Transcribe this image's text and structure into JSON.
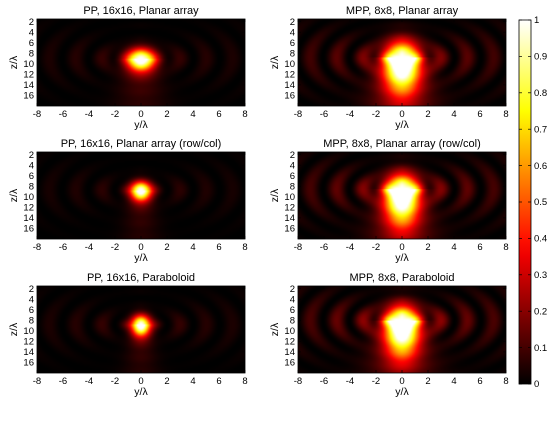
{
  "chart_data": {
    "type": "heatmap",
    "colormap": "hot",
    "colorbar": {
      "min": 0,
      "max": 1,
      "ticks": [
        "0",
        "0.1",
        "0.2",
        "0.3",
        "0.4",
        "0.5",
        "0.6",
        "0.7",
        "0.8",
        "0.9",
        "1"
      ]
    },
    "x_axis": {
      "label": "y/λ",
      "range": [
        -8,
        8
      ],
      "ticks": [
        "-8",
        "-6",
        "-4",
        "-2",
        "0",
        "2",
        "4",
        "6",
        "8"
      ]
    },
    "y_axis": {
      "label": "z/λ",
      "range": [
        1.5,
        18
      ],
      "ticks": [
        "2",
        "4",
        "6",
        "8",
        "10",
        "12",
        "14",
        "16"
      ],
      "reversed": true
    },
    "panels": [
      {
        "title": "PP, 16x16, Planar array",
        "focus_y": 0,
        "focus_z": 9.0,
        "peak": 1.0,
        "spread_y": 0.75,
        "spread_z_up": 1.3,
        "spread_z_down": 1.6,
        "tail": 0.15,
        "rings": 0.12
      },
      {
        "title": "MPP, 8x8, Planar array",
        "focus_y": 0,
        "focus_z": 8.8,
        "peak": 1.0,
        "spread_y": 0.95,
        "spread_z_up": 2.2,
        "spread_z_down": 4.5,
        "tail": 0.4,
        "rings": 0.28
      },
      {
        "title": "PP, 16x16, Planar array (row/col)",
        "focus_y": 0,
        "focus_z": 8.7,
        "peak": 1.0,
        "spread_y": 0.55,
        "spread_z_up": 1.1,
        "spread_z_down": 1.4,
        "tail": 0.12,
        "rings": 0.1
      },
      {
        "title": "MPP, 8x8, Planar array (row/col)",
        "focus_y": 0,
        "focus_z": 8.5,
        "peak": 1.0,
        "spread_y": 0.9,
        "spread_z_up": 2.0,
        "spread_z_down": 4.5,
        "tail": 0.4,
        "rings": 0.3
      },
      {
        "title": "PP, 16x16, Paraboloid",
        "focus_y": 0,
        "focus_z": 8.8,
        "peak": 1.0,
        "spread_y": 0.5,
        "spread_z_up": 1.2,
        "spread_z_down": 1.5,
        "tail": 0.12,
        "rings": 0.12
      },
      {
        "title": "MPP, 8x8, Paraboloid",
        "focus_y": 0,
        "focus_z": 8.0,
        "peak": 1.0,
        "spread_y": 0.9,
        "spread_z_up": 2.0,
        "spread_z_down": 4.5,
        "tail": 0.4,
        "rings": 0.32
      }
    ]
  }
}
